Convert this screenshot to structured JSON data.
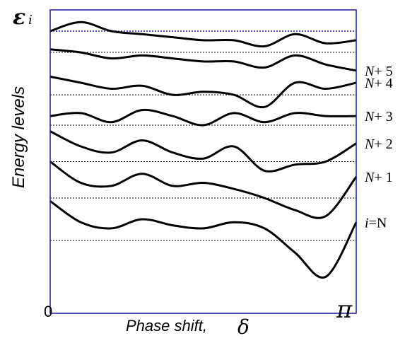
{
  "chart_data": {
    "type": "line",
    "title": "",
    "xlabel_text": "Phase shift, ",
    "xlabel_symbol": "δ",
    "ylabel": "Energy  levels",
    "y_symbol_main": "ε",
    "y_symbol_sub": "i",
    "x_tick_labels": {
      "start": "0",
      "end": "π"
    },
    "xlim": [
      0,
      1
    ],
    "ylim": [
      0,
      1
    ],
    "grid": false,
    "colors": {
      "curve": "#000000",
      "axis_frame": "#1a1aa0",
      "reference_line_top": "#1a1aa0",
      "reference_line": "#000000"
    },
    "series": [
      {
        "label_italic": "i",
        "label_rest": "=N",
        "x": [
          0,
          0.1,
          0.2,
          0.3,
          0.4,
          0.5,
          0.6,
          0.7,
          0.8,
          0.9,
          1
        ],
        "y": [
          0.37,
          0.3,
          0.28,
          0.31,
          0.29,
          0.28,
          0.3,
          0.28,
          0.2,
          0.12,
          0.3
        ],
        "baseline": 0.24
      },
      {
        "label_italic": "N",
        "label_rest": "+ 1",
        "x": [
          0,
          0.1,
          0.2,
          0.3,
          0.4,
          0.5,
          0.6,
          0.7,
          0.8,
          0.9,
          1
        ],
        "y": [
          0.5,
          0.43,
          0.42,
          0.46,
          0.42,
          0.43,
          0.41,
          0.38,
          0.34,
          0.32,
          0.45
        ],
        "baseline": 0.38
      },
      {
        "label_italic": "N",
        "label_rest": "+ 2",
        "x": [
          0,
          0.1,
          0.2,
          0.3,
          0.4,
          0.5,
          0.6,
          0.7,
          0.8,
          0.9,
          1
        ],
        "y": [
          0.6,
          0.55,
          0.53,
          0.57,
          0.53,
          0.51,
          0.55,
          0.47,
          0.49,
          0.5,
          0.56
        ],
        "baseline": 0.5
      },
      {
        "label_italic": "N",
        "label_rest": "+ 3",
        "x": [
          0,
          0.1,
          0.2,
          0.3,
          0.4,
          0.5,
          0.6,
          0.7,
          0.8,
          0.9,
          1
        ],
        "y": [
          0.65,
          0.66,
          0.63,
          0.67,
          0.65,
          0.62,
          0.66,
          0.63,
          0.66,
          0.65,
          0.65
        ],
        "baseline": 0.62
      },
      {
        "label_italic": "N",
        "label_rest": "+ 4",
        "x": [
          0,
          0.1,
          0.2,
          0.3,
          0.4,
          0.5,
          0.6,
          0.7,
          0.8,
          0.9,
          1
        ],
        "y": [
          0.78,
          0.76,
          0.74,
          0.75,
          0.72,
          0.73,
          0.72,
          0.68,
          0.76,
          0.74,
          0.76
        ],
        "baseline": 0.72
      },
      {
        "label_italic": "N",
        "label_rest": "+ 5",
        "x": [
          0,
          0.1,
          0.2,
          0.3,
          0.4,
          0.5,
          0.6,
          0.7,
          0.8,
          0.9,
          1
        ],
        "y": [
          0.87,
          0.86,
          0.84,
          0.85,
          0.84,
          0.83,
          0.83,
          0.81,
          0.85,
          0.82,
          0.8
        ],
        "baseline": 0.86
      },
      {
        "label_italic": "",
        "label_rest": "",
        "x": [
          0,
          0.1,
          0.2,
          0.3,
          0.4,
          0.5,
          0.6,
          0.7,
          0.8,
          0.9,
          1
        ],
        "y": [
          0.93,
          0.96,
          0.93,
          0.92,
          0.91,
          0.9,
          0.9,
          0.88,
          0.92,
          0.89,
          0.9
        ],
        "baseline": 0.93
      }
    ]
  }
}
